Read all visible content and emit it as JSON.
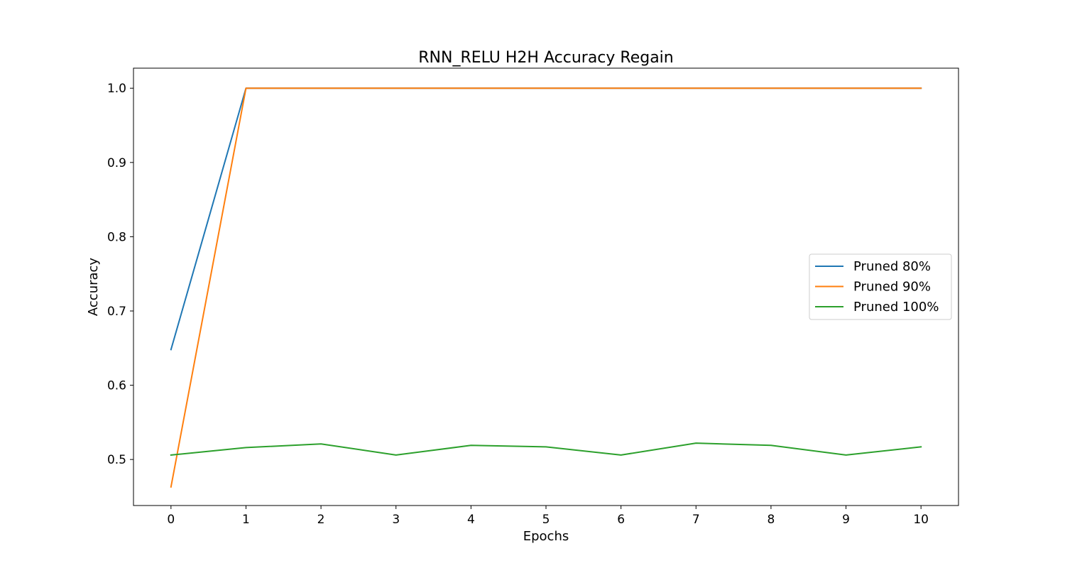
{
  "chart_data": {
    "type": "line",
    "title": "RNN_RELU H2H Accuracy Regain",
    "xlabel": "Epochs",
    "ylabel": "Accuracy",
    "x": [
      0,
      1,
      2,
      3,
      4,
      5,
      6,
      7,
      8,
      9,
      10
    ],
    "xticks": [
      "0",
      "1",
      "2",
      "3",
      "4",
      "5",
      "6",
      "7",
      "8",
      "9",
      "10"
    ],
    "yticks": [
      "0.5",
      "0.6",
      "0.7",
      "0.8",
      "0.9",
      "1.0"
    ],
    "xlim": [
      -0.5,
      10.5
    ],
    "ylim": [
      0.438,
      1.027
    ],
    "grid": false,
    "legend_position": "center-right",
    "series": [
      {
        "name": "Pruned 80%",
        "color": "#1f77b4",
        "values": [
          0.648,
          1.0,
          1.0,
          1.0,
          1.0,
          1.0,
          1.0,
          1.0,
          1.0,
          1.0,
          1.0
        ]
      },
      {
        "name": "Pruned 90%",
        "color": "#ff7f0e",
        "values": [
          0.463,
          1.0,
          1.0,
          1.0,
          1.0,
          1.0,
          1.0,
          1.0,
          1.0,
          1.0,
          1.0
        ]
      },
      {
        "name": "Pruned 100%",
        "color": "#2ca02c",
        "values": [
          0.506,
          0.516,
          0.521,
          0.506,
          0.519,
          0.517,
          0.506,
          0.522,
          0.519,
          0.506,
          0.517
        ]
      }
    ]
  }
}
